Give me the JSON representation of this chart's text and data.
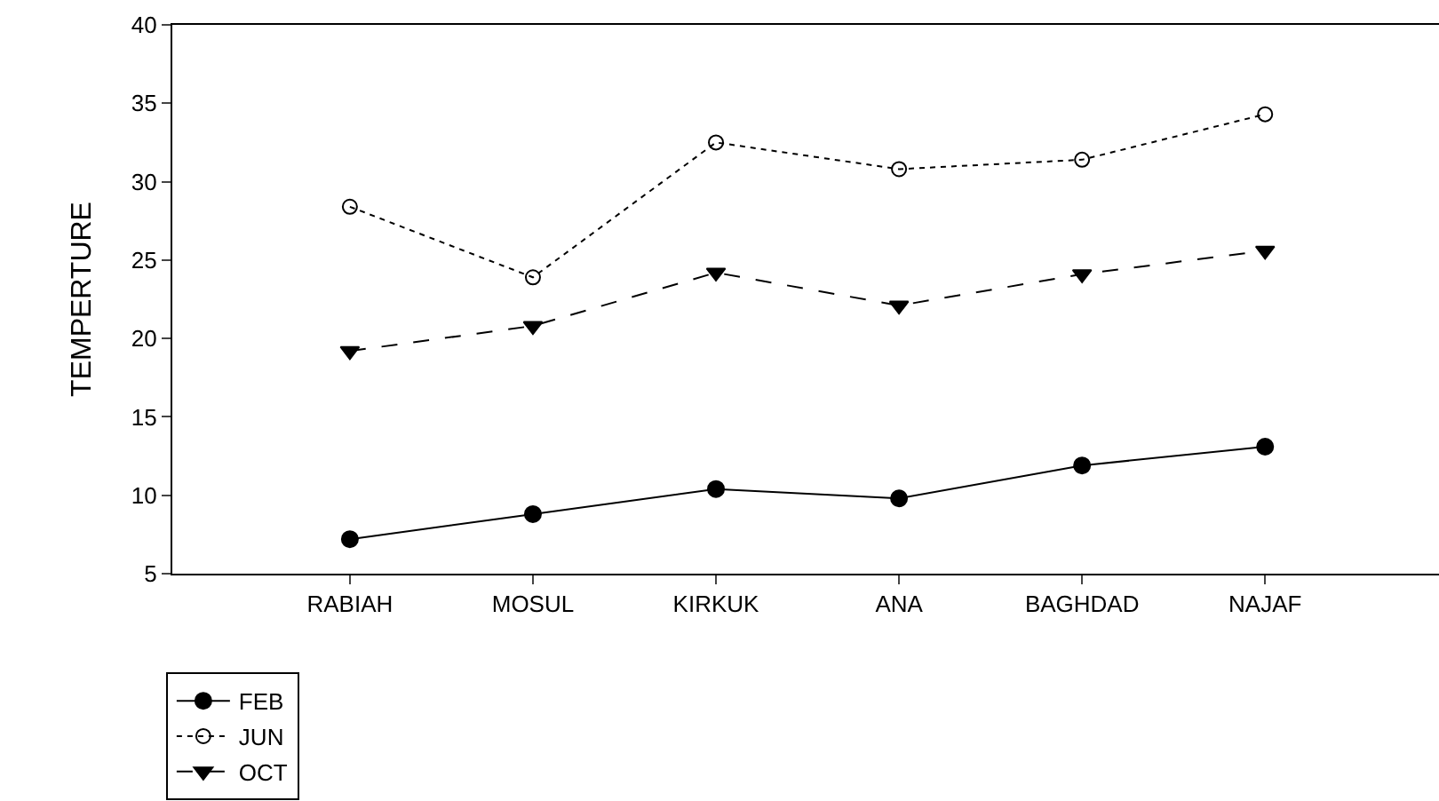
{
  "chart_data": {
    "type": "line",
    "ylabel": "TEMPERTURE",
    "categories": [
      "RABIAH",
      "MOSUL",
      "KIRKUK",
      "ANA",
      "BAGHDAD",
      "NAJAF"
    ],
    "ylim": [
      5,
      40
    ],
    "yticks": [
      5,
      10,
      15,
      20,
      25,
      30,
      35,
      40
    ],
    "grid": false,
    "legend": "bottom left",
    "series": [
      {
        "name": "FEB",
        "color": "#000000",
        "marker": "circle",
        "line_style": "solid",
        "values": [
          7.2,
          8.8,
          10.4,
          9.8,
          11.9,
          13.1
        ]
      },
      {
        "name": "JUN",
        "color": "#000000",
        "marker": "circle-open",
        "line_style": "dotted",
        "values": [
          28.4,
          23.9,
          32.5,
          30.8,
          31.4,
          34.3
        ]
      },
      {
        "name": "OCT",
        "color": "#000000",
        "marker": "triangle-down",
        "line_style": "dashed",
        "values": [
          19.2,
          20.8,
          24.2,
          22.1,
          24.1,
          25.6
        ]
      }
    ]
  }
}
